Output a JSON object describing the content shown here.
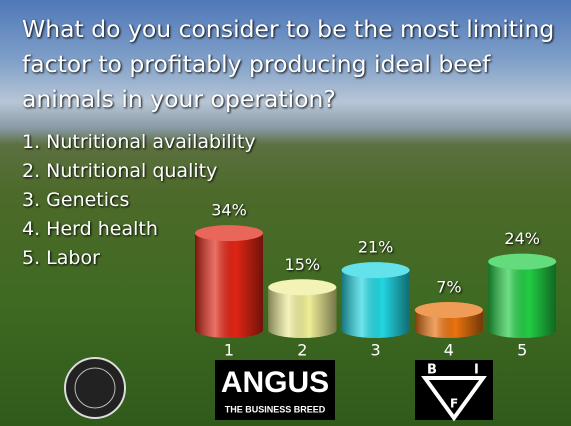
{
  "chart_data": {
    "type": "bar",
    "title": "What do you consider to be the most limiting factor to profitably producing ideal beef animals in your operation?",
    "options": [
      "1. Nutritional availability",
      "2. Nutritional quality",
      "3. Genetics",
      "4. Herd health",
      "5. Labor"
    ],
    "categories": [
      "1",
      "2",
      "3",
      "4",
      "5"
    ],
    "values": [
      34,
      15,
      21,
      7,
      24
    ],
    "value_labels": [
      "34%",
      "15%",
      "21%",
      "7%",
      "24%"
    ],
    "colors": [
      "#e02414",
      "#eeee98",
      "#22d6e2",
      "#e8720e",
      "#22cc44"
    ]
  },
  "logos": {
    "angus": "ANGUS",
    "angus_tagline": "THE BUSINESS BREED",
    "bif": [
      "B",
      "I",
      "F"
    ]
  }
}
